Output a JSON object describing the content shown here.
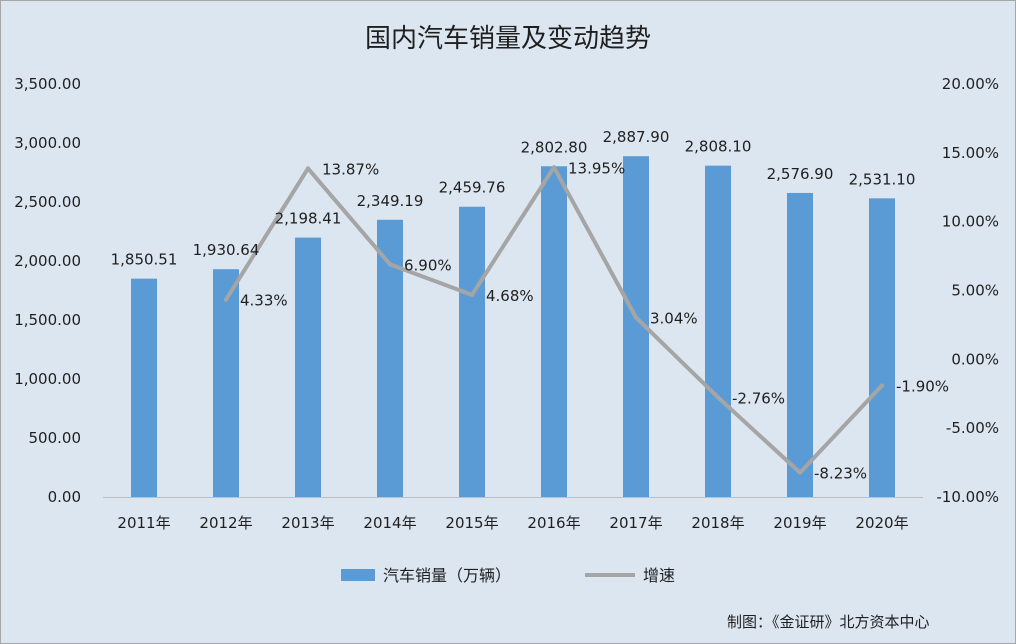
{
  "chart_data": {
    "type": "bar",
    "title": "国内汽车销量及变动趋势",
    "categories": [
      "2011年",
      "2012年",
      "2013年",
      "2014年",
      "2015年",
      "2016年",
      "2017年",
      "2018年",
      "2019年",
      "2020年"
    ],
    "series": [
      {
        "name": "汽车销量（万辆）",
        "type": "bar",
        "axis": "left",
        "color": "#5b9bd5",
        "values": [
          1850.51,
          1930.64,
          2198.41,
          2349.19,
          2459.76,
          2802.8,
          2887.9,
          2808.1,
          2576.9,
          2531.1
        ],
        "labels": [
          "1,850.51",
          "1,930.64",
          "2,198.41",
          "2,349.19",
          "2,459.76",
          "2,802.80",
          "2,887.90",
          "2,808.10",
          "2,576.90",
          "2,531.10"
        ]
      },
      {
        "name": "增速",
        "type": "line",
        "axis": "right",
        "color": "#a5a5a5",
        "values": [
          null,
          4.33,
          13.87,
          6.9,
          4.68,
          13.95,
          3.04,
          -2.76,
          -8.23,
          -1.9
        ],
        "labels": [
          "",
          "4.33%",
          "13.87%",
          "6.90%",
          "4.68%",
          "13.95%",
          "3.04%",
          "-2.76%",
          "-8.23%",
          "-1.90%"
        ]
      }
    ],
    "y_left": {
      "min": 0,
      "max": 3500,
      "step": 500,
      "tick_labels": [
        "0.00",
        "500.00",
        "1,000.00",
        "1,500.00",
        "2,000.00",
        "2,500.00",
        "3,000.00",
        "3,500.00"
      ]
    },
    "y_right": {
      "min": -10,
      "max": 20,
      "step": 5,
      "tick_labels": [
        "-10.00%",
        "-5.00%",
        "0.00%",
        "5.00%",
        "10.00%",
        "15.00%",
        "20.00%"
      ]
    },
    "grid": false,
    "legend_position": "bottom",
    "source": "制图：《金证研》北方资本中心"
  }
}
